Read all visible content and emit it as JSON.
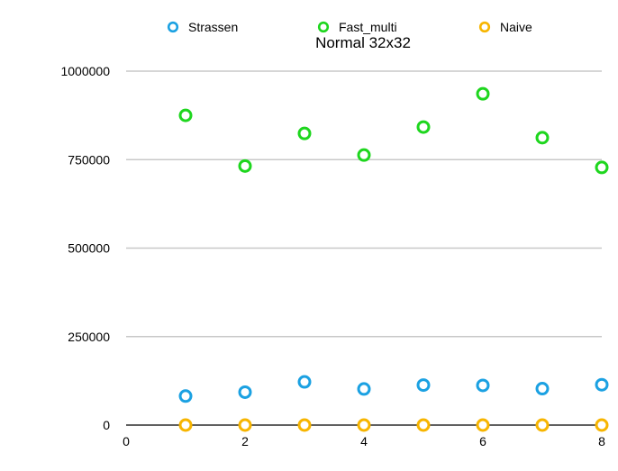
{
  "chart_data": {
    "type": "scatter",
    "title": "Normal 32x32",
    "xlabel": "",
    "ylabel": "",
    "xlim": [
      0,
      8
    ],
    "ylim": [
      0,
      1000000
    ],
    "x_ticks": [
      "0",
      "2",
      "4",
      "6",
      "8"
    ],
    "y_ticks": [
      "0",
      "250000",
      "500000",
      "750000",
      "1000000"
    ],
    "grid": "horizontal",
    "legend_position": "top",
    "x": [
      1,
      2,
      3,
      4,
      5,
      6,
      7,
      8
    ],
    "series": [
      {
        "name": "Strassen",
        "color": "#1ba1e2",
        "values": [
          82000,
          93000,
          122000,
          102000,
          113000,
          112000,
          103000,
          114000
        ]
      },
      {
        "name": "Fast_multi",
        "color": "#1ed61e",
        "values": [
          875000,
          732000,
          824000,
          763000,
          842000,
          936000,
          812000,
          728000
        ]
      },
      {
        "name": "Naive",
        "color": "#f7b500",
        "values": [
          0,
          0,
          0,
          0,
          0,
          0,
          0,
          0
        ]
      }
    ]
  }
}
